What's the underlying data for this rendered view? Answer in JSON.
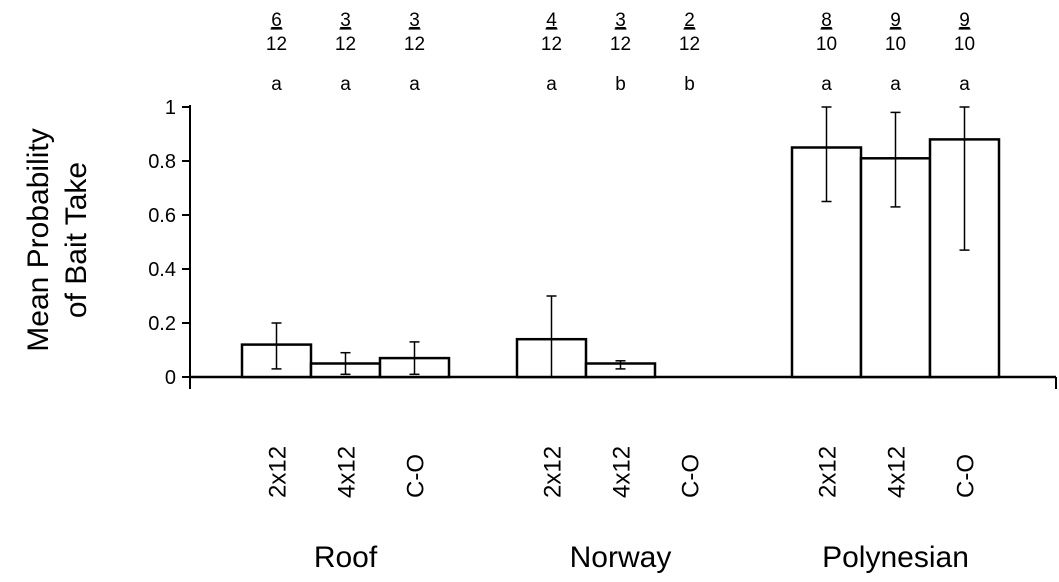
{
  "chart_data": {
    "type": "bar",
    "ylabel_lines": [
      "Mean Probability",
      "of Bait Take"
    ],
    "ylim": [
      0,
      1
    ],
    "yticks": [
      "0",
      "0.2",
      "0.4",
      "0.6",
      "0.8",
      "1"
    ],
    "grid": false,
    "legend": "none",
    "bar_fill": "#ffffff",
    "bar_stroke": "#000000",
    "groups": [
      {
        "name": "Roof",
        "bars": [
          {
            "label": "2x12",
            "value": 0.12,
            "err_low": 0.03,
            "err_high": 0.2,
            "numerator": "6",
            "denominator": "12",
            "letter": "a"
          },
          {
            "label": "4x12",
            "value": 0.05,
            "err_low": 0.01,
            "err_high": 0.09,
            "numerator": "3",
            "denominator": "12",
            "letter": "a"
          },
          {
            "label": "C-O",
            "value": 0.07,
            "err_low": 0.01,
            "err_high": 0.13,
            "numerator": "3",
            "denominator": "12",
            "letter": "a"
          }
        ]
      },
      {
        "name": "Norway",
        "bars": [
          {
            "label": "2x12",
            "value": 0.14,
            "err_low": 0.0,
            "err_high": 0.3,
            "numerator": "4",
            "denominator": "12",
            "letter": "a"
          },
          {
            "label": "4x12",
            "value": 0.05,
            "err_low": 0.03,
            "err_high": 0.06,
            "numerator": "3",
            "denominator": "12",
            "letter": "b"
          },
          {
            "label": "C-O",
            "value": 0.0,
            "err_low": null,
            "err_high": null,
            "numerator": "2",
            "denominator": "12",
            "letter": "b"
          }
        ]
      },
      {
        "name": "Polynesian",
        "bars": [
          {
            "label": "2x12",
            "value": 0.85,
            "err_low": 0.65,
            "err_high": 1.0,
            "numerator": "8",
            "denominator": "10",
            "letter": "a"
          },
          {
            "label": "4x12",
            "value": 0.81,
            "err_low": 0.63,
            "err_high": 0.98,
            "numerator": "9",
            "denominator": "10",
            "letter": "a"
          },
          {
            "label": "C-O",
            "value": 0.88,
            "err_low": 0.47,
            "err_high": 1.0,
            "numerator": "9",
            "denominator": "10",
            "letter": "a"
          }
        ]
      }
    ]
  }
}
